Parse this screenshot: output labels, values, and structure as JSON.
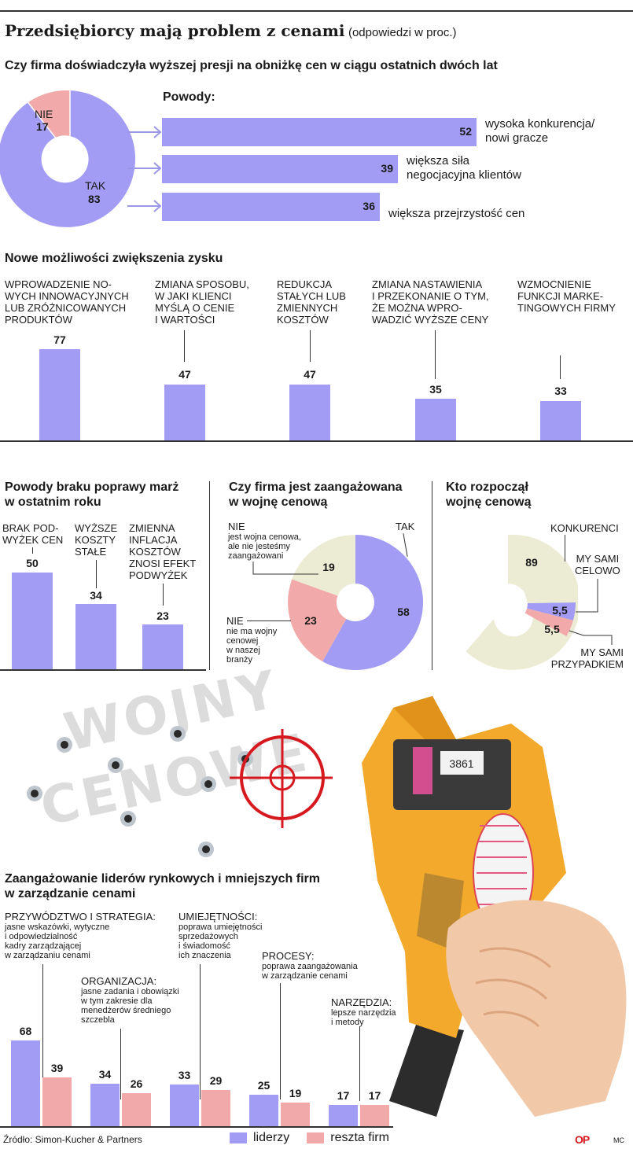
{
  "header": {
    "title": "Przedsiębiorcy mają problem z cenami",
    "subtitle": "(odpowiedzi w proc.)"
  },
  "colors": {
    "purple": "#a29cf4",
    "pink": "#f2a9a9",
    "beige": "#ecebd4",
    "ink": "#1a1a1a"
  },
  "chart_data": [
    {
      "type": "pie",
      "title": "Czy firma doświadczyła wyższej presji na obniżkę cen w ciągu ostatnich dwóch lat",
      "labels": [
        "NIE",
        "TAK"
      ],
      "values": [
        17,
        83
      ]
    },
    {
      "type": "bar",
      "title": "Powody:",
      "categories": [
        "wysoka konkurencja/ nowi gracze",
        "większa siła negocjacyjna klientów",
        "większa przejrzystość cen"
      ],
      "values": [
        52,
        39,
        36
      ]
    },
    {
      "type": "bar",
      "title": "Nowe możliwości zwiększenia zysku",
      "categories": [
        "WPROWADZENIE NOWYCH INNOWACYJNYCH LUB ZRÓŻNICOWANYCH PRODUKTÓW",
        "ZMIANA SPOSOBU, W JAKI KLIENCI MYŚLĄ O CENIE I WARTOŚCI",
        "REDUKCJA STAŁYCH LUB ZMIENNYCH KOSZTÓW",
        "ZMIANA NASTAWIENIA I PRZEKONANIE O TYM, ŻE MOŻNA WPROWADZIĆ WYŻSZE CENY",
        "WZMOCNIENIE FUNKCJI MARKETINGOWYCH FIRMY"
      ],
      "values": [
        77,
        47,
        47,
        35,
        33
      ]
    },
    {
      "type": "bar",
      "title": "Powody braku poprawy marż w ostatnim roku",
      "categories": [
        "BRAK PODWYŻEK CEN",
        "WYŻSZE KOSZTY STAŁE",
        "ZMIENNA INFLACJA KOSZTÓW ZNOSI EFEKT PODWYŻEK"
      ],
      "values": [
        50,
        34,
        23
      ]
    },
    {
      "type": "pie",
      "title": "Czy firma jest zaangażowana w wojnę cenową",
      "labels": [
        "TAK",
        "NIE jest wojna cenowa, ale nie jesteśmy zaangażowani",
        "NIE nie ma wojny cenowej w naszej branży"
      ],
      "values": [
        58,
        19,
        23
      ]
    },
    {
      "type": "pie",
      "title": "Kto rozpoczął wojnę cenową",
      "labels": [
        "KONKURENCI",
        "MY SAMI CELOWO",
        "MY SAMI PRZYPADKIEM"
      ],
      "values": [
        89,
        5.5,
        5.5
      ]
    },
    {
      "type": "bar",
      "title": "Zaangażowanie liderów rynkowych i mniejszych firm w zarządzanie cenami",
      "categories": [
        "PRZYWÓDZTWO I STRATEGIA",
        "ORGANIZACJA",
        "UMIEJĘTNOŚCI",
        "PROCESY",
        "NARZĘDZIA"
      ],
      "series": [
        {
          "name": "liderzy",
          "values": [
            68,
            34,
            33,
            25,
            17
          ]
        },
        {
          "name": "reszta firm",
          "values": [
            39,
            26,
            29,
            19,
            17
          ]
        }
      ]
    }
  ],
  "sec1": {
    "title": "Czy firma doświadczyła wyższej presji na obniżkę cen w ciągu ostatnich dwóch lat",
    "powody": "Powody:",
    "nie_label": "NIE",
    "nie_value": "17",
    "tak_label": "TAK",
    "tak_value": "83",
    "bars": [
      {
        "value": "52",
        "line1": "wysoka konkurencja/",
        "line2": "nowi gracze"
      },
      {
        "value": "39",
        "line1": "większa siła",
        "line2": "negocjacyjna klientów"
      },
      {
        "value": "36",
        "line1": "większa przejrzystość cen",
        "line2": ""
      }
    ]
  },
  "sec2": {
    "title": "Nowe możliwości zwiększenia zysku",
    "items": [
      {
        "lines": [
          "WPROWADZENIE NO-",
          "WYCH INNOWACYJNYCH",
          "LUB ZRÓŻNICOWANYCH",
          "PRODUKTÓW"
        ],
        "value": "77"
      },
      {
        "lines": [
          "ZMIANA SPOSOBU,",
          "W JAKI KLIENCI",
          "MYŚLĄ O CENIE",
          "I WARTOŚCI"
        ],
        "value": "47"
      },
      {
        "lines": [
          "REDUKCJA",
          "STAŁYCH LUB",
          "ZMIENNYCH",
          "KOSZTÓW"
        ],
        "value": "47"
      },
      {
        "lines": [
          "ZMIANA NASTAWIENIA",
          "I PRZEKONANIE O TYM,",
          "ŻE MOŻNA WPRO-",
          "WADZIĆ WYŻSZE CENY"
        ],
        "value": "35"
      },
      {
        "lines": [
          "WZMOCNIENIE",
          "FUNKCJI MARKE-",
          "TINGOWYCH FIRMY"
        ],
        "value": "33"
      }
    ]
  },
  "sec3": {
    "title_l1": "Powody braku poprawy marż",
    "title_l2": "w ostatnim roku",
    "items": [
      {
        "lines": [
          "BRAK POD-",
          "WYŻEK CEN"
        ],
        "value": "50"
      },
      {
        "lines": [
          "WYŻSZE",
          "KOSZTY",
          "STAŁE"
        ],
        "value": "34"
      },
      {
        "lines": [
          "ZMIENNA",
          "INFLACJA",
          "KOSZTÓW",
          "ZNOSI EFEKT",
          "PODWYŻEK"
        ],
        "value": "23"
      }
    ]
  },
  "sec4": {
    "title_l1": "Czy firma jest zaangażowana",
    "title_l2": "w wojnę cenową",
    "tak": "TAK",
    "tak_value": "58",
    "nie1_head": "NIE",
    "nie1_lines": [
      "jest wojna cenowa,",
      "ale nie jesteśmy",
      "zaangażowani"
    ],
    "nie1_value": "19",
    "nie2_head": "NIE",
    "nie2_lines": [
      "nie ma wojny",
      "cenowej",
      "w naszej",
      "branży"
    ],
    "nie2_value": "23"
  },
  "sec5": {
    "title_l1": "Kto rozpoczął",
    "title_l2": "wojnę cenową",
    "konk": "KONKURENCI",
    "konk_value": "89",
    "celowo_l1": "MY SAMI",
    "celowo_l2": "CELOWO",
    "celowo_value": "5,5",
    "przyp_l1": "MY SAMI",
    "przyp_l2": "PRZYPADKIEM",
    "przyp_value": "5,5"
  },
  "illustration": {
    "word1": "WOJNY",
    "word2": "CENOWE",
    "counter": "3861"
  },
  "sec6": {
    "title_l1": "Zaangażowanie liderów rynkowych i mniejszych firm",
    "title_l2": "w zarządzanie cenami",
    "groups": [
      {
        "head": "PRZYWÓDZTWO I STRATEGIA:",
        "lines": [
          "jasne wskazówki, wytyczne",
          "i odpowiedzialność",
          "kadry zarządzającej",
          "w zarządzaniu cenami"
        ],
        "v1": "68",
        "v2": "39"
      },
      {
        "head": "ORGANIZACJA:",
        "lines": [
          "jasne zadania i obowiązki",
          "w tym zakresie dla",
          "menedżerów średniego",
          "szczebla"
        ],
        "v1": "34",
        "v2": "26"
      },
      {
        "head": "UMIEJĘTNOŚCI:",
        "lines": [
          "poprawa umiejętności",
          "sprzedażowych",
          "i świadomość",
          "ich znaczenia"
        ],
        "v1": "33",
        "v2": "29"
      },
      {
        "head": "PROCESY:",
        "lines": [
          "poprawa zaangażowania",
          "w zarządzanie cenami"
        ],
        "v1": "25",
        "v2": "19"
      },
      {
        "head": "NARZĘDZIA:",
        "lines": [
          "lepsze narzędzia",
          "i metody"
        ],
        "v1": "17",
        "v2": "17"
      }
    ]
  },
  "legend": {
    "s1": "liderzy",
    "s2": "reszta firm"
  },
  "footer": {
    "source": "Źródło: Simon-Kucher & Partners",
    "logo": "OP",
    "author": "MC"
  }
}
